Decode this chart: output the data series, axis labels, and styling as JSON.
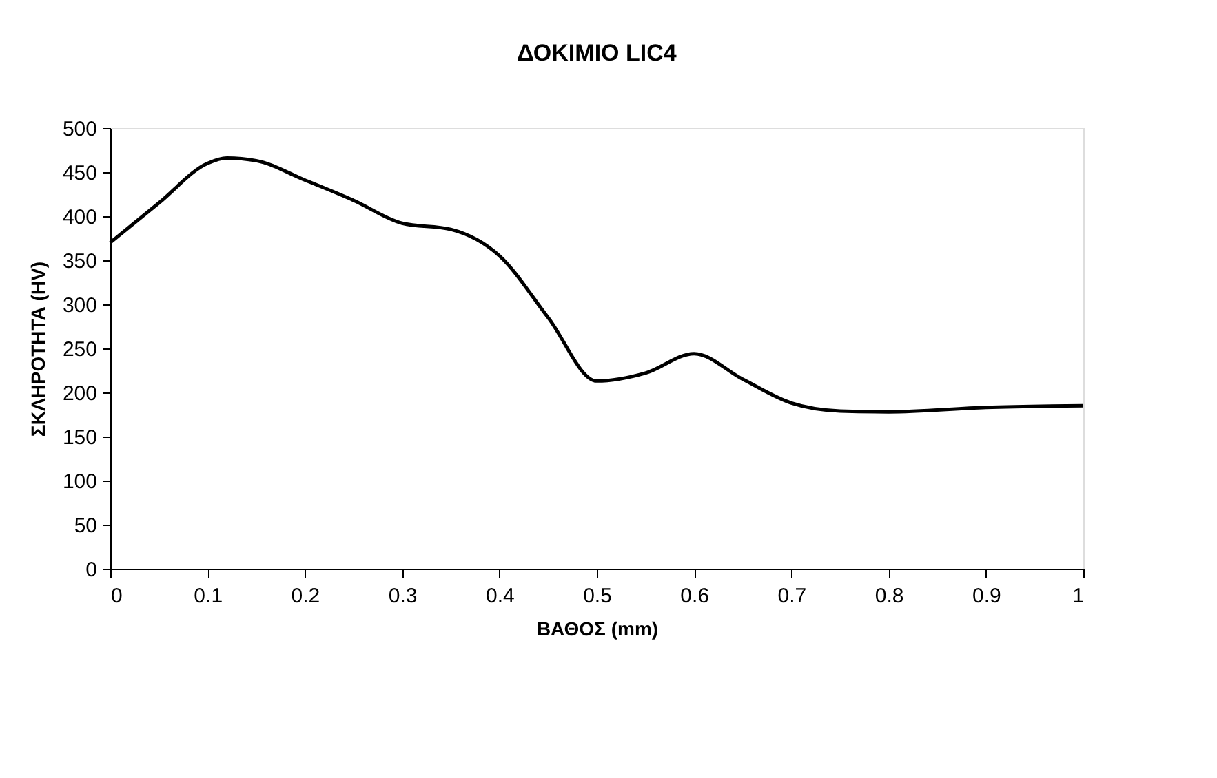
{
  "chart_data": {
    "type": "line",
    "title": "ΔΟΚΙΜΙΟ LIC4",
    "xlabel": "ΒΑΘΟΣ (mm)",
    "ylabel": "ΣΚΛΗΡΟΤΗΤΑ (HV)",
    "x": [
      0,
      0.05,
      0.1,
      0.12,
      0.15,
      0.2,
      0.25,
      0.3,
      0.35,
      0.4,
      0.45,
      0.5,
      0.55,
      0.6,
      0.65,
      0.7,
      0.75,
      0.8,
      0.9,
      1
    ],
    "series": [
      {
        "color": "#000000",
        "values": [
          370,
          415,
          460,
          466,
          463,
          441,
          418,
          392,
          385,
          355,
          285,
          213,
          222,
          244,
          215,
          188,
          179,
          178,
          183,
          185
        ]
      }
    ],
    "xlim": [
      0,
      1
    ],
    "xticks": [
      0,
      0.1,
      0.2,
      0.3,
      0.4,
      0.5,
      0.6,
      0.7,
      0.8,
      0.9,
      1
    ],
    "ylim": [
      0,
      500
    ],
    "yticks": [
      0,
      50,
      100,
      150,
      200,
      250,
      300,
      350,
      400,
      450,
      500
    ],
    "grid": false,
    "legend": false,
    "marker": "none",
    "line_style": "solid"
  }
}
